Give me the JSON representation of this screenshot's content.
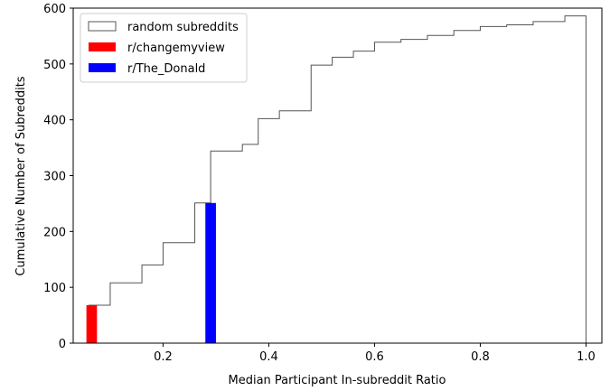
{
  "chart_data": {
    "type": "bar",
    "xlabel": "Median Participant In-subreddit Ratio",
    "ylabel": "Cumulative Number of Subreddits",
    "xlim": [
      0.03,
      1.03
    ],
    "ylim": [
      0,
      600
    ],
    "xticks": [
      0.2,
      0.4,
      0.6,
      0.8,
      1.0
    ],
    "xtick_labels": [
      "0.2",
      "0.4",
      "0.6",
      "0.8",
      "1.0"
    ],
    "yticks": [
      0,
      100,
      200,
      300,
      400,
      500,
      600
    ],
    "ytick_labels": [
      "0",
      "100",
      "200",
      "300",
      "400",
      "500",
      "600"
    ],
    "grid": false,
    "legend_position": "top-left",
    "series": [
      {
        "name": "random subreddits",
        "style": "step",
        "color": "#555555",
        "bin_edges": [
          0.06,
          0.1,
          0.16,
          0.2,
          0.26,
          0.29,
          0.35,
          0.38,
          0.42,
          0.48,
          0.52,
          0.56,
          0.6,
          0.65,
          0.7,
          0.75,
          0.8,
          0.85,
          0.9,
          0.96,
          1.0
        ],
        "values": [
          68,
          108,
          140,
          180,
          251,
          344,
          356,
          402,
          416,
          498,
          512,
          523,
          539,
          544,
          551,
          560,
          567,
          570,
          576,
          586
        ]
      },
      {
        "name": "r/changemyview",
        "style": "bar",
        "color": "#ff0000",
        "x_range": [
          0.055,
          0.075
        ],
        "value": 68
      },
      {
        "name": "r/The_Donald",
        "style": "bar",
        "color": "#0000ff",
        "x_range": [
          0.28,
          0.3
        ],
        "value": 251
      }
    ]
  }
}
